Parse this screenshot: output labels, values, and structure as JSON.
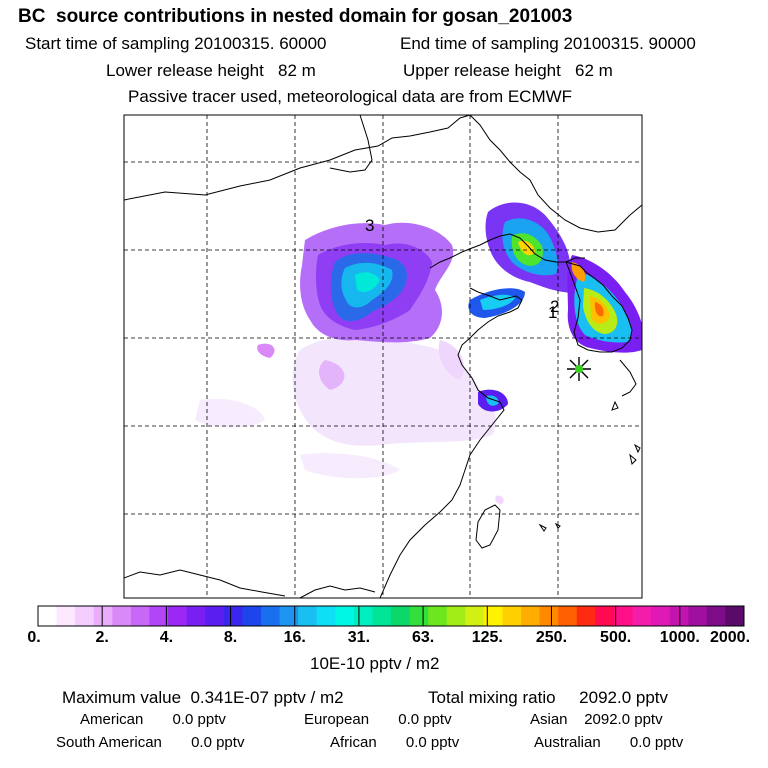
{
  "header": {
    "title": "BC  source contributions in nested domain for gosan_201003",
    "start_label": "Start time of sampling 20100315. 60000",
    "end_label": "End time of sampling 20100315. 90000",
    "lower_label": "Lower release height   82 m",
    "upper_label": "Upper release height   62 m",
    "tracer_line": "Passive tracer used, meteorological data are from ECMWF"
  },
  "map": {
    "markers": [
      "3",
      "1",
      "2"
    ],
    "receptor_symbol": "star"
  },
  "colorbar": {
    "labels": [
      "0.",
      "2.",
      "4.",
      "8.",
      "16.",
      "31.",
      "63.",
      "125.",
      "250.",
      "500.",
      "1000.",
      "2000."
    ],
    "unit_label": "10E-10 pptv / m2",
    "colors": [
      "#ffffff",
      "#fbe8ff",
      "#f3cdfd",
      "#e9adfb",
      "#d98af8",
      "#c768f6",
      "#b245f5",
      "#9b28f4",
      "#7a1ff2",
      "#5a1ef0",
      "#3a26ec",
      "#1e45ec",
      "#1a6fee",
      "#1d95f0",
      "#19bff3",
      "#0edff5",
      "#00f7e6",
      "#00efc0",
      "#00e596",
      "#0ad768",
      "#32df3c",
      "#6ce61e",
      "#a2ec18",
      "#d2f014",
      "#fff200",
      "#ffd000",
      "#ffae00",
      "#ff8a00",
      "#ff5f00",
      "#ff2a12",
      "#ff0a50",
      "#ff1088",
      "#f41caa",
      "#e018b5",
      "#c414b0",
      "#a0109e",
      "#7d0c88",
      "#5a0a68"
    ]
  },
  "stats": {
    "max_label": "Maximum value  0.341E-07 pptv / m2",
    "total_label": "Total mixing ratio     2092.0 pptv",
    "american": "American       0.0 pptv",
    "european": "European       0.0 pptv",
    "asian": "Asian    2092.0 pptv",
    "south_american": "South American       0.0 pptv",
    "african": "African       0.0 pptv",
    "australian": "Australian       0.0 pptv"
  }
}
